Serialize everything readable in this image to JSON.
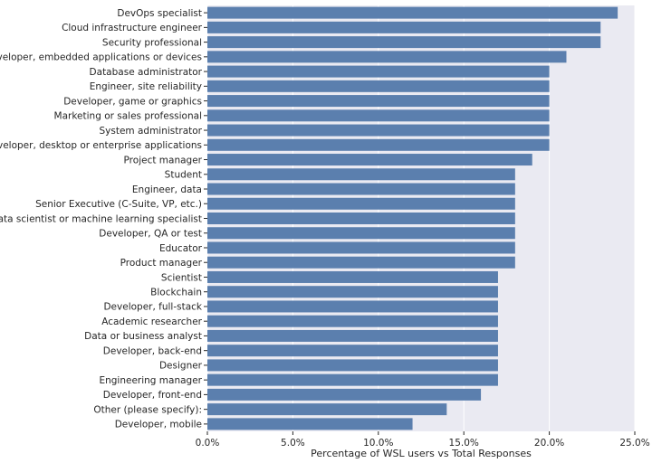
{
  "chart_data": {
    "type": "bar",
    "orientation": "horizontal",
    "title": "",
    "xlabel": "Percentage of WSL users vs Total Responses",
    "ylabel": "",
    "xlim": [
      0,
      25
    ],
    "x_ticks": [
      0,
      5,
      10,
      15,
      20,
      25
    ],
    "x_tick_labels": [
      "0.0%",
      "5.0%",
      "10.0%",
      "15.0%",
      "20.0%",
      "25.0%"
    ],
    "grid": true,
    "bar_color": "#5b7fae",
    "background_color": "#eaeaf2",
    "categories": [
      "DevOps specialist",
      "Cloud infrastructure engineer",
      "Security professional",
      "Developer, embedded applications or devices",
      "Database administrator",
      "Engineer, site reliability",
      "Developer, game or graphics",
      "Marketing or sales professional",
      "System administrator",
      "Developer, desktop or enterprise applications",
      "Project manager",
      "Student",
      "Engineer, data",
      "Senior Executive (C-Suite, VP, etc.)",
      "Data scientist or machine learning specialist",
      "Developer, QA or test",
      "Educator",
      "Product manager",
      "Scientist",
      "Blockchain",
      "Developer, full-stack",
      "Academic researcher",
      "Data or business analyst",
      "Developer, back-end",
      "Designer",
      "Engineering manager",
      "Developer, front-end",
      "Other (please specify):",
      "Developer, mobile"
    ],
    "values": [
      24,
      23,
      23,
      21,
      20,
      20,
      20,
      20,
      20,
      20,
      19,
      18,
      18,
      18,
      18,
      18,
      18,
      18,
      17,
      17,
      17,
      17,
      17,
      17,
      17,
      17,
      16,
      14,
      12
    ]
  }
}
